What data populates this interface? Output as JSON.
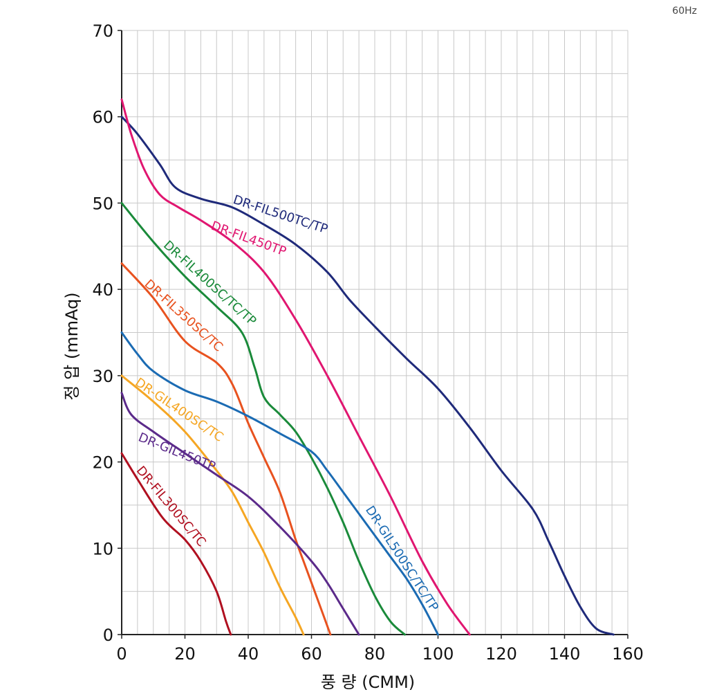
{
  "corner_note": "60Hz",
  "chart_data": {
    "type": "line",
    "xlabel": "풍 량 (CMM)",
    "ylabel": "정 압 (mmAq)",
    "xlim": [
      0,
      160
    ],
    "ylim": [
      0,
      70
    ],
    "xticks": [
      0,
      20,
      40,
      60,
      80,
      100,
      120,
      140,
      160
    ],
    "yticks": [
      0,
      10,
      20,
      30,
      40,
      50,
      60,
      70
    ],
    "minor_grid_x_step": 5,
    "major_grid_y_step": 5,
    "grid": true,
    "series": [
      {
        "name": "DR-FIL500TC/TP",
        "color": "#1f2a7a",
        "x": [
          0,
          5,
          12,
          17,
          25,
          35,
          45,
          55,
          65,
          72,
          80,
          90,
          100,
          110,
          120,
          130,
          135,
          140,
          145,
          150,
          155.5
        ],
        "y": [
          60,
          58,
          54.5,
          51.8,
          50.5,
          49.5,
          47.5,
          45.2,
          42,
          38.8,
          35.7,
          32,
          28.5,
          24,
          19,
          14.5,
          10.8,
          6.8,
          3.2,
          0.7,
          0
        ],
        "label_at": [
          35,
          50
        ],
        "label_angle": -18
      },
      {
        "name": "DR-FIL450TP",
        "color": "#e01670",
        "x": [
          0,
          3,
          7,
          12,
          18,
          25,
          35,
          45,
          55,
          65,
          75,
          85,
          95,
          103,
          110
        ],
        "y": [
          62,
          58,
          54,
          51,
          49.5,
          48,
          45.5,
          42,
          36.5,
          30,
          23,
          16,
          8.5,
          3.5,
          0
        ],
        "label_at": [
          28,
          47
        ],
        "label_angle": -20
      },
      {
        "name": "DR-FIL400SC/TC/TP",
        "color": "#1a8a3a",
        "x": [
          0,
          10,
          20,
          30,
          38,
          42,
          45,
          50,
          55,
          60,
          65,
          70,
          75,
          80,
          85,
          89.5
        ],
        "y": [
          50,
          45.5,
          41.5,
          38,
          35,
          31,
          27.5,
          25.5,
          23.5,
          20.5,
          17,
          13,
          8.5,
          4.5,
          1.5,
          0
        ],
        "label_at": [
          13,
          45
        ],
        "label_angle": -42
      },
      {
        "name": "DR-FIL350SC/TC",
        "color": "#e8521f",
        "x": [
          0,
          10,
          20,
          30,
          35,
          40,
          45,
          50,
          55,
          58,
          62,
          66
        ],
        "y": [
          43,
          39,
          34,
          31.5,
          29,
          24.5,
          20.5,
          16.5,
          11,
          8,
          4,
          0
        ],
        "label_at": [
          7,
          40.5
        ],
        "label_angle": -42
      },
      {
        "name": "DR-GIL500SC/TC/TP",
        "color": "#1b6bb3",
        "x": [
          0,
          5,
          10,
          20,
          30,
          40,
          50,
          60,
          65,
          70,
          75,
          80,
          85,
          90,
          95,
          100
        ],
        "y": [
          35,
          32.5,
          30.5,
          28.3,
          27,
          25.3,
          23.3,
          21.2,
          19,
          16.5,
          14,
          11.5,
          9,
          6.5,
          3.5,
          0
        ],
        "label_at": [
          77,
          14.5
        ],
        "label_angle": -57
      },
      {
        "name": "DR-GIL400SC/TC",
        "color": "#f5a623",
        "x": [
          0,
          10,
          20,
          30,
          35,
          40,
          45,
          50,
          55,
          57.5
        ],
        "y": [
          30,
          27,
          23.5,
          19,
          16.5,
          13,
          9.5,
          5.5,
          2,
          0
        ],
        "label_at": [
          4,
          29
        ],
        "label_angle": -34
      },
      {
        "name": "DR-GIL450TP",
        "color": "#5b2a8a",
        "x": [
          0,
          3,
          10,
          20,
          30,
          40,
          50,
          60,
          65,
          70,
          75
        ],
        "y": [
          28,
          25.5,
          23.5,
          21,
          18.5,
          16,
          12.5,
          8.5,
          6,
          3,
          0
        ],
        "label_at": [
          5,
          22.5
        ],
        "label_angle": -22
      },
      {
        "name": "DR-FIL300SC/TC",
        "color": "#b01020",
        "x": [
          0,
          5,
          13,
          20,
          25,
          30,
          33,
          34.5
        ],
        "y": [
          21,
          18,
          13.5,
          11,
          8.5,
          5,
          1.5,
          0
        ],
        "label_at": [
          4.5,
          19
        ],
        "label_angle": -50
      }
    ]
  }
}
